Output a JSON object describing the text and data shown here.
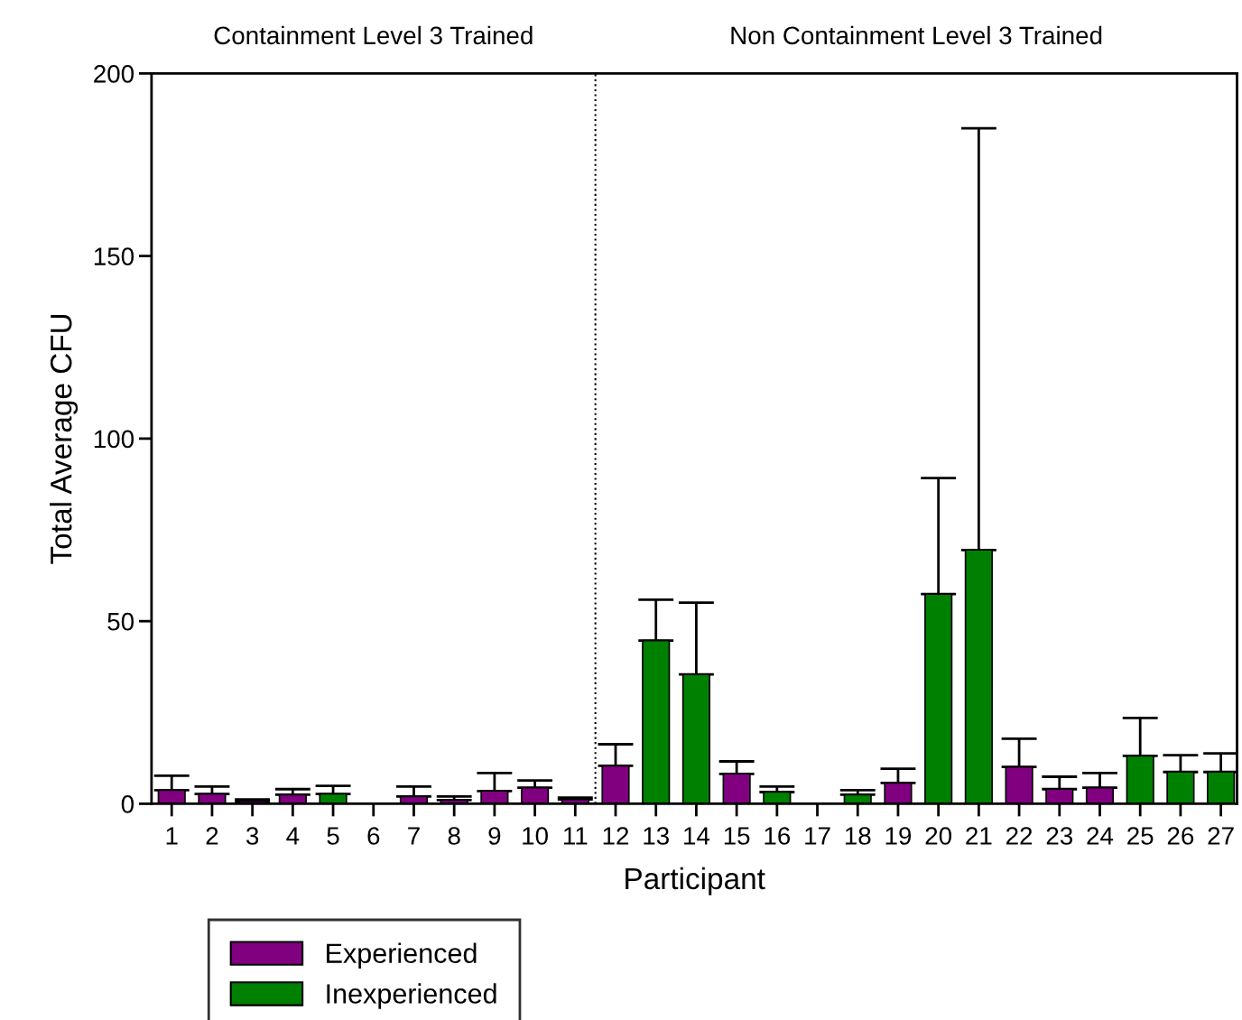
{
  "chart_data": {
    "type": "bar",
    "xlabel": "Participant",
    "ylabel": "Total Average CFU",
    "x": [
      1,
      2,
      3,
      4,
      5,
      6,
      7,
      8,
      9,
      10,
      11,
      12,
      13,
      14,
      15,
      16,
      17,
      18,
      19,
      20,
      21,
      22,
      23,
      24,
      25,
      26,
      27
    ],
    "xlim": [
      0.5,
      27.4
    ],
    "xticks": [
      1,
      2,
      3,
      4,
      5,
      6,
      7,
      8,
      9,
      10,
      11,
      12,
      13,
      14,
      15,
      16,
      17,
      18,
      19,
      20,
      21,
      22,
      23,
      24,
      25,
      26,
      27
    ],
    "ylim": [
      0,
      200
    ],
    "yticks": [
      0,
      50,
      100,
      150,
      200
    ],
    "series": [
      {
        "name": "Experienced",
        "color": "#800080",
        "values": [
          3.7,
          2.7,
          0.7,
          2.5,
          null,
          null,
          2.0,
          1.0,
          3.5,
          4.4,
          1.2,
          10.4,
          null,
          null,
          8.2,
          null,
          null,
          null,
          5.7,
          null,
          null,
          10.1,
          4.0,
          4.4,
          null,
          null,
          null
        ],
        "errors": [
          [
            3.7,
            7.7
          ],
          [
            2.7,
            4.7
          ],
          [
            0.7,
            1.2
          ],
          [
            2.5,
            4.0
          ],
          null,
          null,
          [
            2.0,
            4.7
          ],
          [
            1.0,
            2.0
          ],
          [
            3.5,
            8.4
          ],
          [
            4.4,
            6.4
          ],
          [
            1.2,
            1.7
          ],
          [
            10.4,
            16.3
          ],
          null,
          null,
          [
            8.2,
            11.6
          ],
          null,
          null,
          null,
          [
            5.7,
            9.6
          ],
          null,
          null,
          [
            10.1,
            17.8
          ],
          [
            4.0,
            7.4
          ],
          [
            4.4,
            8.4
          ],
          null,
          null,
          null
        ]
      },
      {
        "name": "Inexperienced",
        "color": "#008000",
        "values": [
          null,
          null,
          null,
          null,
          2.7,
          null,
          null,
          null,
          null,
          null,
          null,
          null,
          44.7,
          35.4,
          null,
          3.2,
          null,
          2.5,
          null,
          57.4,
          69.5,
          null,
          null,
          null,
          13.1,
          8.7,
          8.7
        ],
        "errors": [
          null,
          null,
          null,
          null,
          [
            2.7,
            4.9
          ],
          null,
          null,
          null,
          null,
          null,
          null,
          null,
          [
            44.7,
            55.9
          ],
          [
            35.4,
            55.1
          ],
          null,
          [
            3.2,
            4.7
          ],
          null,
          [
            2.5,
            3.7
          ],
          null,
          [
            57.4,
            89.2
          ],
          [
            69.5,
            185
          ],
          null,
          null,
          null,
          [
            13.1,
            23.5
          ],
          [
            8.7,
            13.3
          ],
          [
            8.7,
            13.8
          ]
        ]
      }
    ],
    "ref_lines": [
      {
        "axis": "x",
        "value": 11.5,
        "line_style": "dotted",
        "color": "#000000"
      }
    ],
    "annotations": [
      "Containment Level 3 Trained",
      "Non Containment Level 3 Trained"
    ],
    "legend": "bottom left",
    "grid": false
  }
}
